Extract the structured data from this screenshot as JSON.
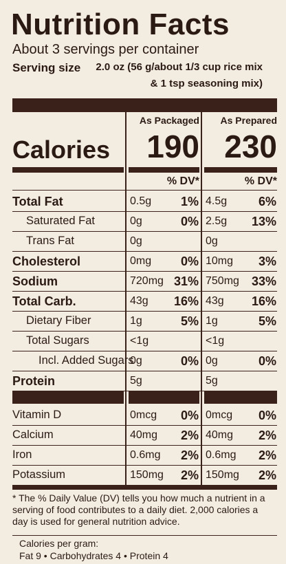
{
  "title": "Nutrition Facts",
  "servings": "About 3 servings per container",
  "serving_size": {
    "label": "Serving size",
    "line1": "2.0 oz (56 g/about 1/3 cup rice mix",
    "line2": "& 1 tsp seasoning mix)"
  },
  "columns": [
    "As Packaged",
    "As Prepared"
  ],
  "calories": {
    "label": "Calories",
    "values": [
      "190",
      "230"
    ]
  },
  "dv_header": [
    "% DV*",
    "% DV*"
  ],
  "rows": [
    {
      "label": "Total Fat",
      "bold": true,
      "indent": 0,
      "cells": [
        [
          "0.5g",
          "1%"
        ],
        [
          "4.5g",
          "6%"
        ]
      ]
    },
    {
      "label": "Saturated Fat",
      "bold": false,
      "indent": 1,
      "cells": [
        [
          "0g",
          "0%"
        ],
        [
          "2.5g",
          "13%"
        ]
      ]
    },
    {
      "label": "Trans Fat",
      "bold": false,
      "indent": 1,
      "cells": [
        [
          "0g"
        ],
        [
          "0g"
        ]
      ]
    },
    {
      "label": "Cholesterol",
      "bold": true,
      "indent": 0,
      "cells": [
        [
          "0mg",
          "0%"
        ],
        [
          "10mg",
          "3%"
        ]
      ]
    },
    {
      "label": "Sodium",
      "bold": true,
      "indent": 0,
      "cells": [
        [
          "720mg",
          "31%"
        ],
        [
          "750mg",
          "33%"
        ]
      ]
    },
    {
      "label": "Total Carb.",
      "bold": true,
      "indent": 0,
      "cells": [
        [
          "43g",
          "16%"
        ],
        [
          "43g",
          "16%"
        ]
      ]
    },
    {
      "label": "Dietary Fiber",
      "bold": false,
      "indent": 1,
      "cells": [
        [
          "1g",
          "5%"
        ],
        [
          "1g",
          "5%"
        ]
      ]
    },
    {
      "label": "Total Sugars",
      "bold": false,
      "indent": 1,
      "cells": [
        [
          "<1g"
        ],
        [
          "<1g"
        ]
      ]
    },
    {
      "label": "Incl. Added Sugars",
      "bold": false,
      "indent": 2,
      "cells": [
        [
          "0g",
          "0%"
        ],
        [
          "0g",
          "0%"
        ]
      ]
    },
    {
      "label": "Protein",
      "bold": true,
      "indent": 0,
      "cells": [
        [
          "5g"
        ],
        [
          "5g"
        ]
      ]
    }
  ],
  "vitamins": [
    {
      "label": "Vitamin D",
      "cells": [
        [
          "0mcg",
          "0%"
        ],
        [
          "0mcg",
          "0%"
        ]
      ]
    },
    {
      "label": "Calcium",
      "cells": [
        [
          "40mg",
          "2%"
        ],
        [
          "40mg",
          "2%"
        ]
      ]
    },
    {
      "label": "Iron",
      "cells": [
        [
          "0.6mg",
          "2%"
        ],
        [
          "0.6mg",
          "2%"
        ]
      ]
    },
    {
      "label": "Potassium",
      "cells": [
        [
          "150mg",
          "2%"
        ],
        [
          "150mg",
          "2%"
        ]
      ]
    }
  ],
  "footnote": "* The % Daily Value (DV) tells you how much a nutrient in a serving of food contributes to a daily diet. 2,000 calories a day is used for general nutrition advice.",
  "calories_per_gram": {
    "heading": "Calories per gram:",
    "text": "Fat 9 • Carbohydrates 4 • Protein 4"
  }
}
